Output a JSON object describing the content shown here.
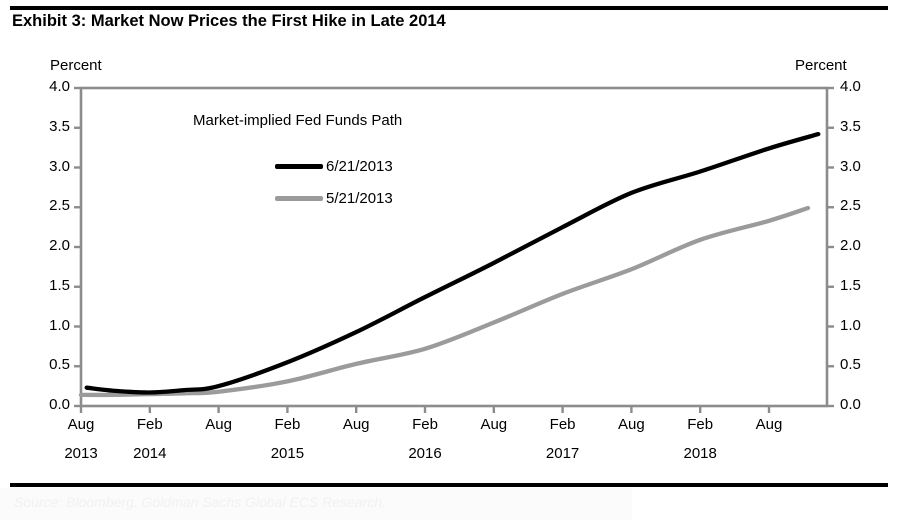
{
  "header": {
    "title": "Exhibit 3: Market Now Prices the First Hike in Late 2014"
  },
  "axes": {
    "y_left_title": "Percent",
    "y_right_title": "Percent",
    "y_ticks": [
      "4.0",
      "3.5",
      "3.0",
      "2.5",
      "2.0",
      "1.5",
      "1.0",
      "0.5",
      "0.0"
    ],
    "x_ticks": [
      {
        "month": "Aug",
        "year": "2013"
      },
      {
        "month": "Feb",
        "year": "2014"
      },
      {
        "month": "Aug",
        "year": ""
      },
      {
        "month": "Feb",
        "year": "2015"
      },
      {
        "month": "Aug",
        "year": ""
      },
      {
        "month": "Feb",
        "year": "2016"
      },
      {
        "month": "Aug",
        "year": ""
      },
      {
        "month": "Feb",
        "year": "2017"
      },
      {
        "month": "Aug",
        "year": ""
      },
      {
        "month": "Feb",
        "year": "2018"
      },
      {
        "month": "Aug",
        "year": ""
      }
    ]
  },
  "legend": {
    "title": "Market-implied Fed Funds Path",
    "items": [
      {
        "label": "6/21/2013",
        "color": "#000000"
      },
      {
        "label": "5/21/2013",
        "color": "#9b9b9b"
      }
    ]
  },
  "footer": {
    "source": "Source: Bloomberg. Goldman Sachs Global ECS Research."
  },
  "chart_data": {
    "type": "line",
    "title": "Market-implied Fed Funds Path",
    "ylabel": "Percent",
    "ylim": [
      0.0,
      4.0
    ],
    "y_tick_step": 0.5,
    "grid": false,
    "legend_position": "upper-left-inside",
    "x_unit": "months since Aug 2013 (6-month ticks)",
    "x_tick_labels": [
      "Aug 2013",
      "Feb 2014",
      "Aug 2014",
      "Feb 2015",
      "Aug 2015",
      "Feb 2016",
      "Aug 2016",
      "Feb 2017",
      "Aug 2017",
      "Feb 2018",
      "Aug 2018"
    ],
    "axis_color": "#8c8c8c",
    "series": [
      {
        "name": "6/21/2013",
        "color": "#000000",
        "points": [
          [
            0.5,
            0.23
          ],
          [
            3,
            0.19
          ],
          [
            6,
            0.17
          ],
          [
            9,
            0.2
          ],
          [
            12,
            0.25
          ],
          [
            18,
            0.55
          ],
          [
            24,
            0.93
          ],
          [
            30,
            1.37
          ],
          [
            36,
            1.8
          ],
          [
            42,
            2.25
          ],
          [
            48,
            2.68
          ],
          [
            54,
            2.95
          ],
          [
            60,
            3.24
          ],
          [
            64.3,
            3.42
          ]
        ]
      },
      {
        "name": "5/21/2013",
        "color": "#9b9b9b",
        "points": [
          [
            0,
            0.14
          ],
          [
            3,
            0.14
          ],
          [
            6,
            0.15
          ],
          [
            9,
            0.16
          ],
          [
            12,
            0.18
          ],
          [
            18,
            0.31
          ],
          [
            24,
            0.53
          ],
          [
            30,
            0.72
          ],
          [
            36,
            1.05
          ],
          [
            42,
            1.41
          ],
          [
            48,
            1.72
          ],
          [
            54,
            2.09
          ],
          [
            60,
            2.33
          ],
          [
            63.4,
            2.49
          ]
        ]
      }
    ]
  }
}
